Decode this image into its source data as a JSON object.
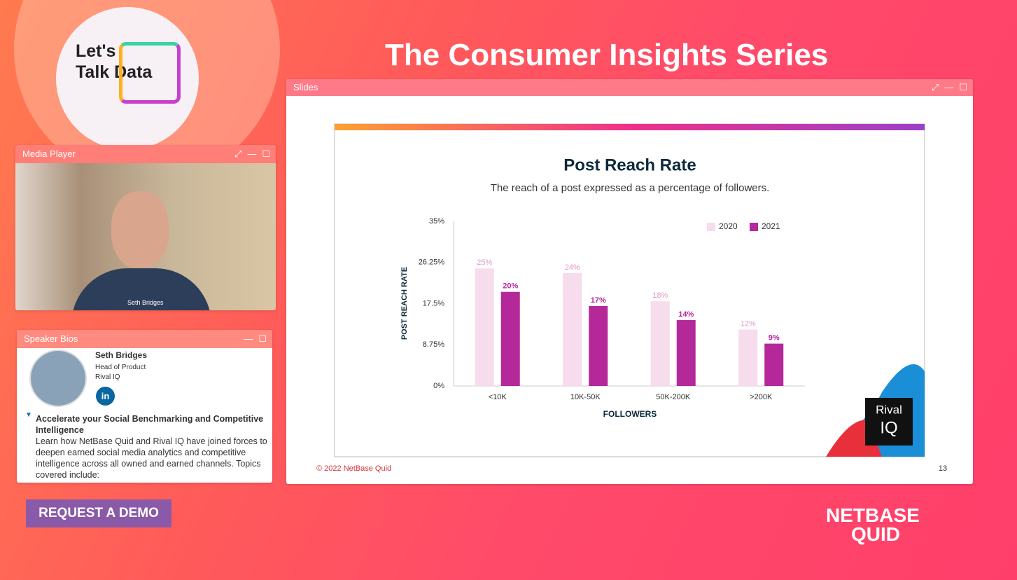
{
  "header": {
    "title": "The Consumer Insights Series"
  },
  "logo": {
    "line1": "Let's",
    "line2": "Talk Data"
  },
  "media_player": {
    "title": "Media Player",
    "caption": "Seth Bridges"
  },
  "speaker_bios": {
    "title": "Speaker Bios",
    "name": "Seth Bridges",
    "role": "Head of Product",
    "company": "Rival IQ",
    "linkedin": "in",
    "session_title": "Accelerate your Social Benchmarking and Competitive Intelligence",
    "description": "Learn how NetBase Quid and Rival IQ have joined forces to deepen earned social media analytics and competitive intelligence across all owned and earned channels. Topics covered include:"
  },
  "request_demo": "REQUEST A DEMO",
  "brand": {
    "line1": "NETBASE",
    "line2": "QUID"
  },
  "slides": {
    "title": "Slides",
    "footer": "© 2022 NetBase Quid",
    "page": "13",
    "badge": {
      "line1": "Rival",
      "line2": "IQ"
    },
    "chart_data": {
      "type": "bar",
      "title": "Post Reach Rate",
      "subtitle": "The reach of a post expressed as a percentage of followers.",
      "x_label": "FOLLOWERS",
      "y_label": "POST REACH RATE",
      "categories": [
        "<10K",
        "10K-50K",
        "50K-200K",
        ">200K"
      ],
      "series": [
        {
          "name": "2020",
          "color": "#f6dcec",
          "values": [
            25,
            24,
            18,
            12
          ],
          "value_labels": [
            "25%",
            "24%",
            "18%",
            "12%"
          ]
        },
        {
          "name": "2021",
          "color": "#b5289a",
          "values": [
            20,
            17,
            14,
            9
          ],
          "value_labels": [
            "20%",
            "17%",
            "14%",
            "9%"
          ]
        }
      ],
      "ylim": [
        0,
        35
      ],
      "yticks": [
        {
          "value": 0,
          "label": "0%"
        },
        {
          "value": 8.75,
          "label": "8.75%"
        },
        {
          "value": 17.5,
          "label": "17.5%"
        },
        {
          "value": 26.25,
          "label": "26.25%"
        },
        {
          "value": 35,
          "label": "35%"
        }
      ],
      "legend": "top-right"
    }
  }
}
